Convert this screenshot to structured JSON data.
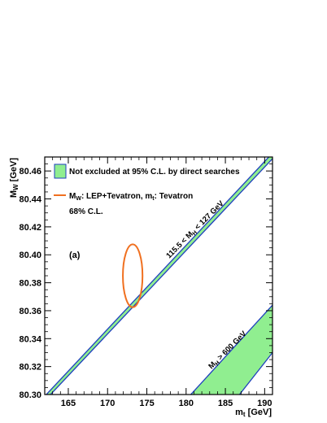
{
  "chart_data": {
    "type": "area",
    "panel_label": "(a)",
    "xlabel": "m",
    "xlabel_sub": "t",
    "xlabel_unit": " [GeV]",
    "ylabel": "M",
    "ylabel_sub": "W",
    "ylabel_unit": " [GeV]",
    "xlim": [
      162,
      191
    ],
    "ylim": [
      80.3,
      80.47
    ],
    "xticks": [
      165,
      170,
      175,
      180,
      185,
      190
    ],
    "yticks": [
      80.3,
      80.32,
      80.34,
      80.36,
      80.38,
      80.4,
      80.42,
      80.44,
      80.46
    ],
    "ytick_labels": [
      "80.30",
      "80.32",
      "80.34",
      "80.36",
      "80.38",
      "80.40",
      "80.42",
      "80.44",
      "80.46"
    ],
    "band_color": "#90ee90",
    "edge_color": "#1f3fbf",
    "ellipse_color": "#f07020",
    "bands": [
      {
        "label": "115.5 < M",
        "label_sub": "H",
        "label_tail": " < 127 GeV",
        "lower": [
          [
            162.0,
            80.2956
          ],
          [
            191.0,
            80.4688
          ]
        ],
        "upper": [
          [
            162.0,
            80.2988
          ],
          [
            191.0,
            80.4728
          ]
        ]
      },
      {
        "label": "M",
        "label_sub": "H",
        "label_tail": " > 600 GeV",
        "lower": [
          [
            186.8,
            80.3
          ],
          [
            191.0,
            80.33
          ]
        ],
        "upper": [
          [
            180.6,
            80.3
          ],
          [
            191.0,
            80.364
          ]
        ]
      }
    ],
    "ellipse": {
      "center": [
        173.2,
        80.385
      ],
      "half_width": 1.25,
      "half_height": 0.0225
    },
    "legend": [
      {
        "type": "box",
        "text": "Not excluded at 95% C.L. by direct searches"
      },
      {
        "type": "line",
        "text_a": "M",
        "sub_a": "W",
        "text_b": ": LEP+Tevatron, m",
        "sub_b": "t",
        "text_c": ": Tevatron"
      },
      {
        "type": "text",
        "text": "68% C.L."
      }
    ]
  }
}
